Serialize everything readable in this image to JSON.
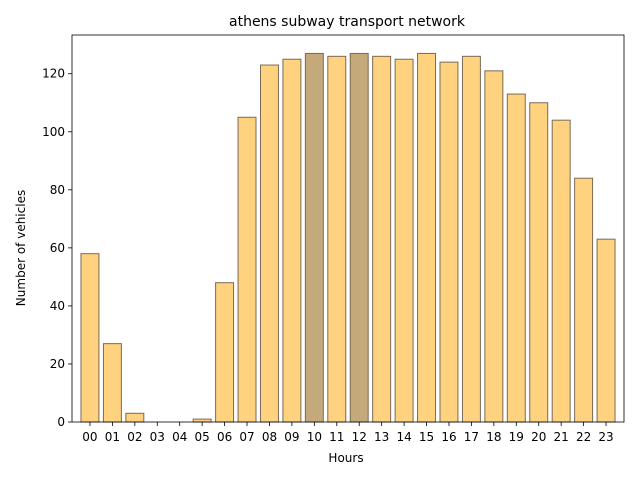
{
  "chart_data": {
    "type": "bar",
    "title": "athens subway transport network",
    "xlabel": "Hours",
    "ylabel": "Number of vehicles",
    "categories": [
      "00",
      "01",
      "02",
      "03",
      "04",
      "05",
      "06",
      "07",
      "08",
      "09",
      "10",
      "11",
      "12",
      "13",
      "14",
      "15",
      "16",
      "17",
      "18",
      "19",
      "20",
      "21",
      "22",
      "23"
    ],
    "values": [
      58,
      27,
      3,
      0,
      0,
      1,
      48,
      105,
      123,
      125,
      127,
      126,
      127,
      126,
      125,
      127,
      124,
      126,
      121,
      113,
      110,
      104,
      84,
      63
    ],
    "highlighted": [
      "10",
      "12"
    ],
    "ylim": [
      0,
      133.35
    ],
    "yticks": [
      0,
      20,
      40,
      60,
      80,
      100,
      120
    ],
    "grid": false,
    "legend": "none",
    "colors": {
      "bar_fill": "#ffd280",
      "bar_highlight_fill": "#c4a97a",
      "bar_edge": "#7a6a55",
      "axis": "#000000"
    }
  }
}
